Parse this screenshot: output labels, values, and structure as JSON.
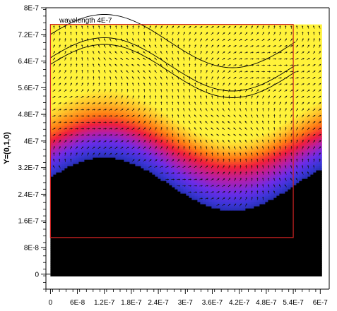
{
  "chart_data": {
    "type": "heatmap",
    "title": "",
    "annotation": "wavelength  4E-7",
    "xlabel": "",
    "ylabel": "Y=(0,1,0)",
    "xlim": [
      -1e-08,
      6.2e-07
    ],
    "ylim": [
      -4.5e-08,
      8e-07
    ],
    "x_tick_values": [
      0,
      6e-08,
      1.2e-07,
      1.8e-07,
      2.4e-07,
      3e-07,
      3.6e-07,
      4.2e-07,
      4.8e-07,
      5.4e-07,
      6e-07
    ],
    "x_tick_labels": [
      "0",
      "6E-8",
      "1.2E-7",
      "1.8E-7",
      "2.4E-7",
      "3E-7",
      "3.6E-7",
      "4.2E-7",
      "4.8E-7",
      "5.4E-7",
      "6E-7"
    ],
    "y_tick_values": [
      0,
      8e-08,
      1.6e-07,
      2.4e-07,
      3.2e-07,
      4e-07,
      4.8e-07,
      5.6e-07,
      6.4e-07,
      7.2e-07,
      8e-07
    ],
    "y_tick_labels": [
      "0",
      "8E-8",
      "1.6E-7",
      "2.4E-7",
      "3.2E-7",
      "4E-7",
      "4.8E-7",
      "5.6E-7",
      "6.4E-7",
      "7.2E-7",
      "8E-7"
    ],
    "field_region": {
      "x": [
        0,
        6e-07
      ],
      "y": [
        0,
        7.5e-07
      ]
    },
    "box": {
      "x": [
        0,
        5.4e-07
      ],
      "y": [
        1.1e-07,
        7.5e-07
      ],
      "color": "#cc2222"
    },
    "interface_curve": {
      "center": 2.7e-07,
      "amplitude": 8e-08,
      "period": 5.7e-07,
      "phase_x": 1.2e-07
    },
    "contour_offsets": [
      4.3e-07,
      3.6e-07,
      3.4e-07
    ],
    "colormap": [
      "#000000",
      "#1b2a9a",
      "#3a35d6",
      "#6c2ce8",
      "#b51ea8",
      "#f01e3c",
      "#ff7a14",
      "#ffc12a",
      "#fff23a"
    ],
    "vector_field": "arrows",
    "grid": false,
    "legend": "none"
  }
}
